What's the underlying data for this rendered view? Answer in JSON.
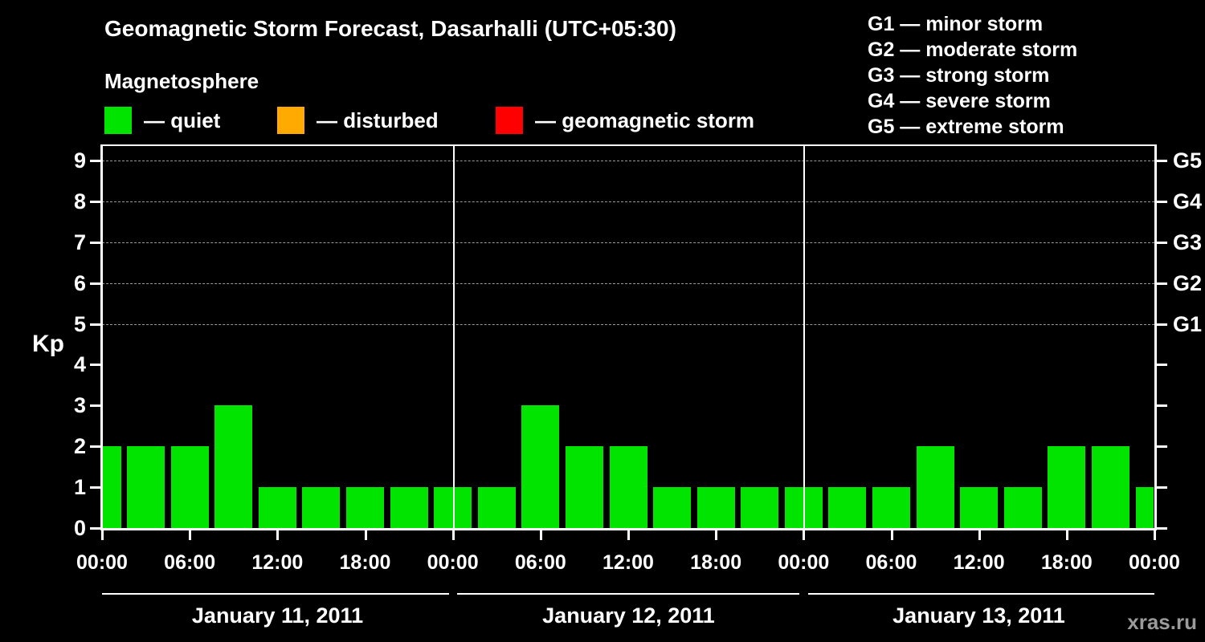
{
  "header": {
    "title": "Geomagnetic Storm Forecast, Dasarhalli (UTC+05:30)",
    "subtitle": "Magnetosphere"
  },
  "legend": {
    "items": [
      {
        "label": "— quiet",
        "color": "#00e400"
      },
      {
        "label": "— disturbed",
        "color": "#ffaa00"
      },
      {
        "label": "— geomagnetic storm",
        "color": "#ff0000"
      }
    ]
  },
  "g_legend": {
    "items": [
      "G1 — minor storm",
      "G2 — moderate storm",
      "G3 — strong storm",
      "G4 — severe storm",
      "G5 — extreme storm"
    ]
  },
  "axes": {
    "y_label": "Kp",
    "y_ticks": [
      0,
      1,
      2,
      3,
      4,
      5,
      6,
      7,
      8,
      9
    ],
    "right_ticks": [
      {
        "value": 5,
        "label": "G1"
      },
      {
        "value": 6,
        "label": "G2"
      },
      {
        "value": 7,
        "label": "G3"
      },
      {
        "value": 8,
        "label": "G4"
      },
      {
        "value": 9,
        "label": "G5"
      }
    ],
    "x_tick_labels": [
      "00:00",
      "06:00",
      "12:00",
      "18:00",
      "00:00",
      "06:00",
      "12:00",
      "18:00",
      "00:00",
      "06:00",
      "12:00",
      "18:00",
      "00:00"
    ]
  },
  "days": [
    {
      "label": "January 11, 2011"
    },
    {
      "label": "January 12, 2011"
    },
    {
      "label": "January 13, 2011"
    }
  ],
  "watermark": "xras.ru",
  "chart_data": {
    "type": "bar",
    "title": "Geomagnetic Storm Forecast, Dasarhalli (UTC+05:30)",
    "ylabel": "Kp",
    "ylim": [
      0,
      9.5
    ],
    "grid_levels": [
      5,
      6,
      7,
      8,
      9
    ],
    "g_scale_thresholds": {
      "G1": 5,
      "G2": 6,
      "G3": 7,
      "G4": 8,
      "G5": 9
    },
    "bar_color": "#00e400",
    "interval_hours": 3,
    "interval_times": [
      "00:00",
      "03:00",
      "06:00",
      "09:00",
      "12:00",
      "15:00",
      "18:00",
      "21:00"
    ],
    "days": [
      {
        "date": "January 11, 2011",
        "kp": [
          2,
          2,
          2,
          3,
          1,
          1,
          1,
          1
        ]
      },
      {
        "date": "January 12, 2011",
        "kp": [
          1,
          1,
          3,
          2,
          2,
          1,
          1,
          1
        ]
      },
      {
        "date": "January 13, 2011",
        "kp": [
          1,
          1,
          1,
          2,
          1,
          1,
          2,
          2
        ]
      }
    ],
    "next_interval_partial_kp": 1
  }
}
